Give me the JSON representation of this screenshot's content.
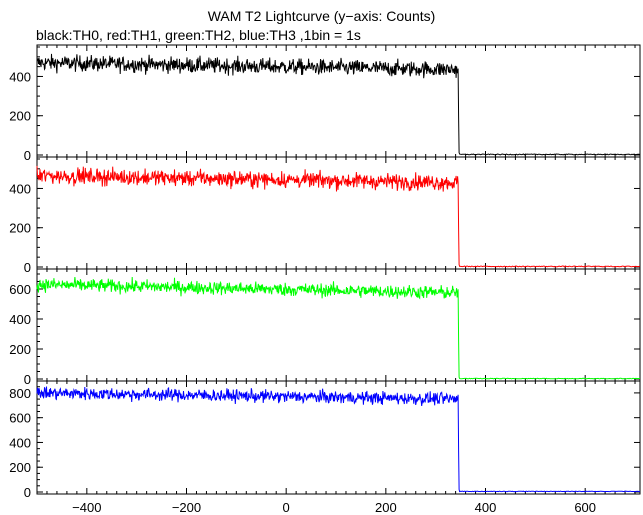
{
  "chart_data": {
    "type": "line",
    "title": "WAM T2 Lightcurve (y−axis: Counts)",
    "subtitle": "black:TH0, red:TH1, green:TH2, blue:TH3 ,1bin = 1s",
    "xlim": [
      -500,
      710
    ],
    "x_ticks": [
      -400,
      -200,
      0,
      200,
      400,
      600
    ],
    "x_tick_labels": [
      "−400",
      "−200",
      "0",
      "200",
      "400",
      "600"
    ],
    "grid": false,
    "drop_x": 345,
    "series": [
      {
        "name": "TH0",
        "color": "#000000",
        "ylim": [
          0,
          550
        ],
        "y_ticks": [
          0,
          200,
          400
        ],
        "y_tick_labels": [
          "0",
          "200",
          "400"
        ],
        "level_start": 470,
        "level_end": 435,
        "noise": 20,
        "after": 3
      },
      {
        "name": "TH1",
        "color": "#ff0000",
        "ylim": [
          0,
          550
        ],
        "y_ticks": [
          0,
          200,
          400
        ],
        "y_tick_labels": [
          "0",
          "200",
          "400"
        ],
        "level_start": 465,
        "level_end": 430,
        "noise": 20,
        "after": 3
      },
      {
        "name": "TH2",
        "color": "#00ff00",
        "ylim": [
          0,
          720
        ],
        "y_ticks": [
          0,
          200,
          400,
          600
        ],
        "y_tick_labels": [
          "0",
          "200",
          "400",
          "600"
        ],
        "level_start": 630,
        "level_end": 575,
        "noise": 22,
        "after": 3
      },
      {
        "name": "TH3",
        "color": "#0000ff",
        "ylim": [
          0,
          880
        ],
        "y_ticks": [
          0,
          200,
          400,
          600,
          800
        ],
        "y_tick_labels": [
          "0",
          "200",
          "400",
          "600",
          "800"
        ],
        "level_start": 800,
        "level_end": 750,
        "noise": 25,
        "after": 5
      }
    ]
  }
}
